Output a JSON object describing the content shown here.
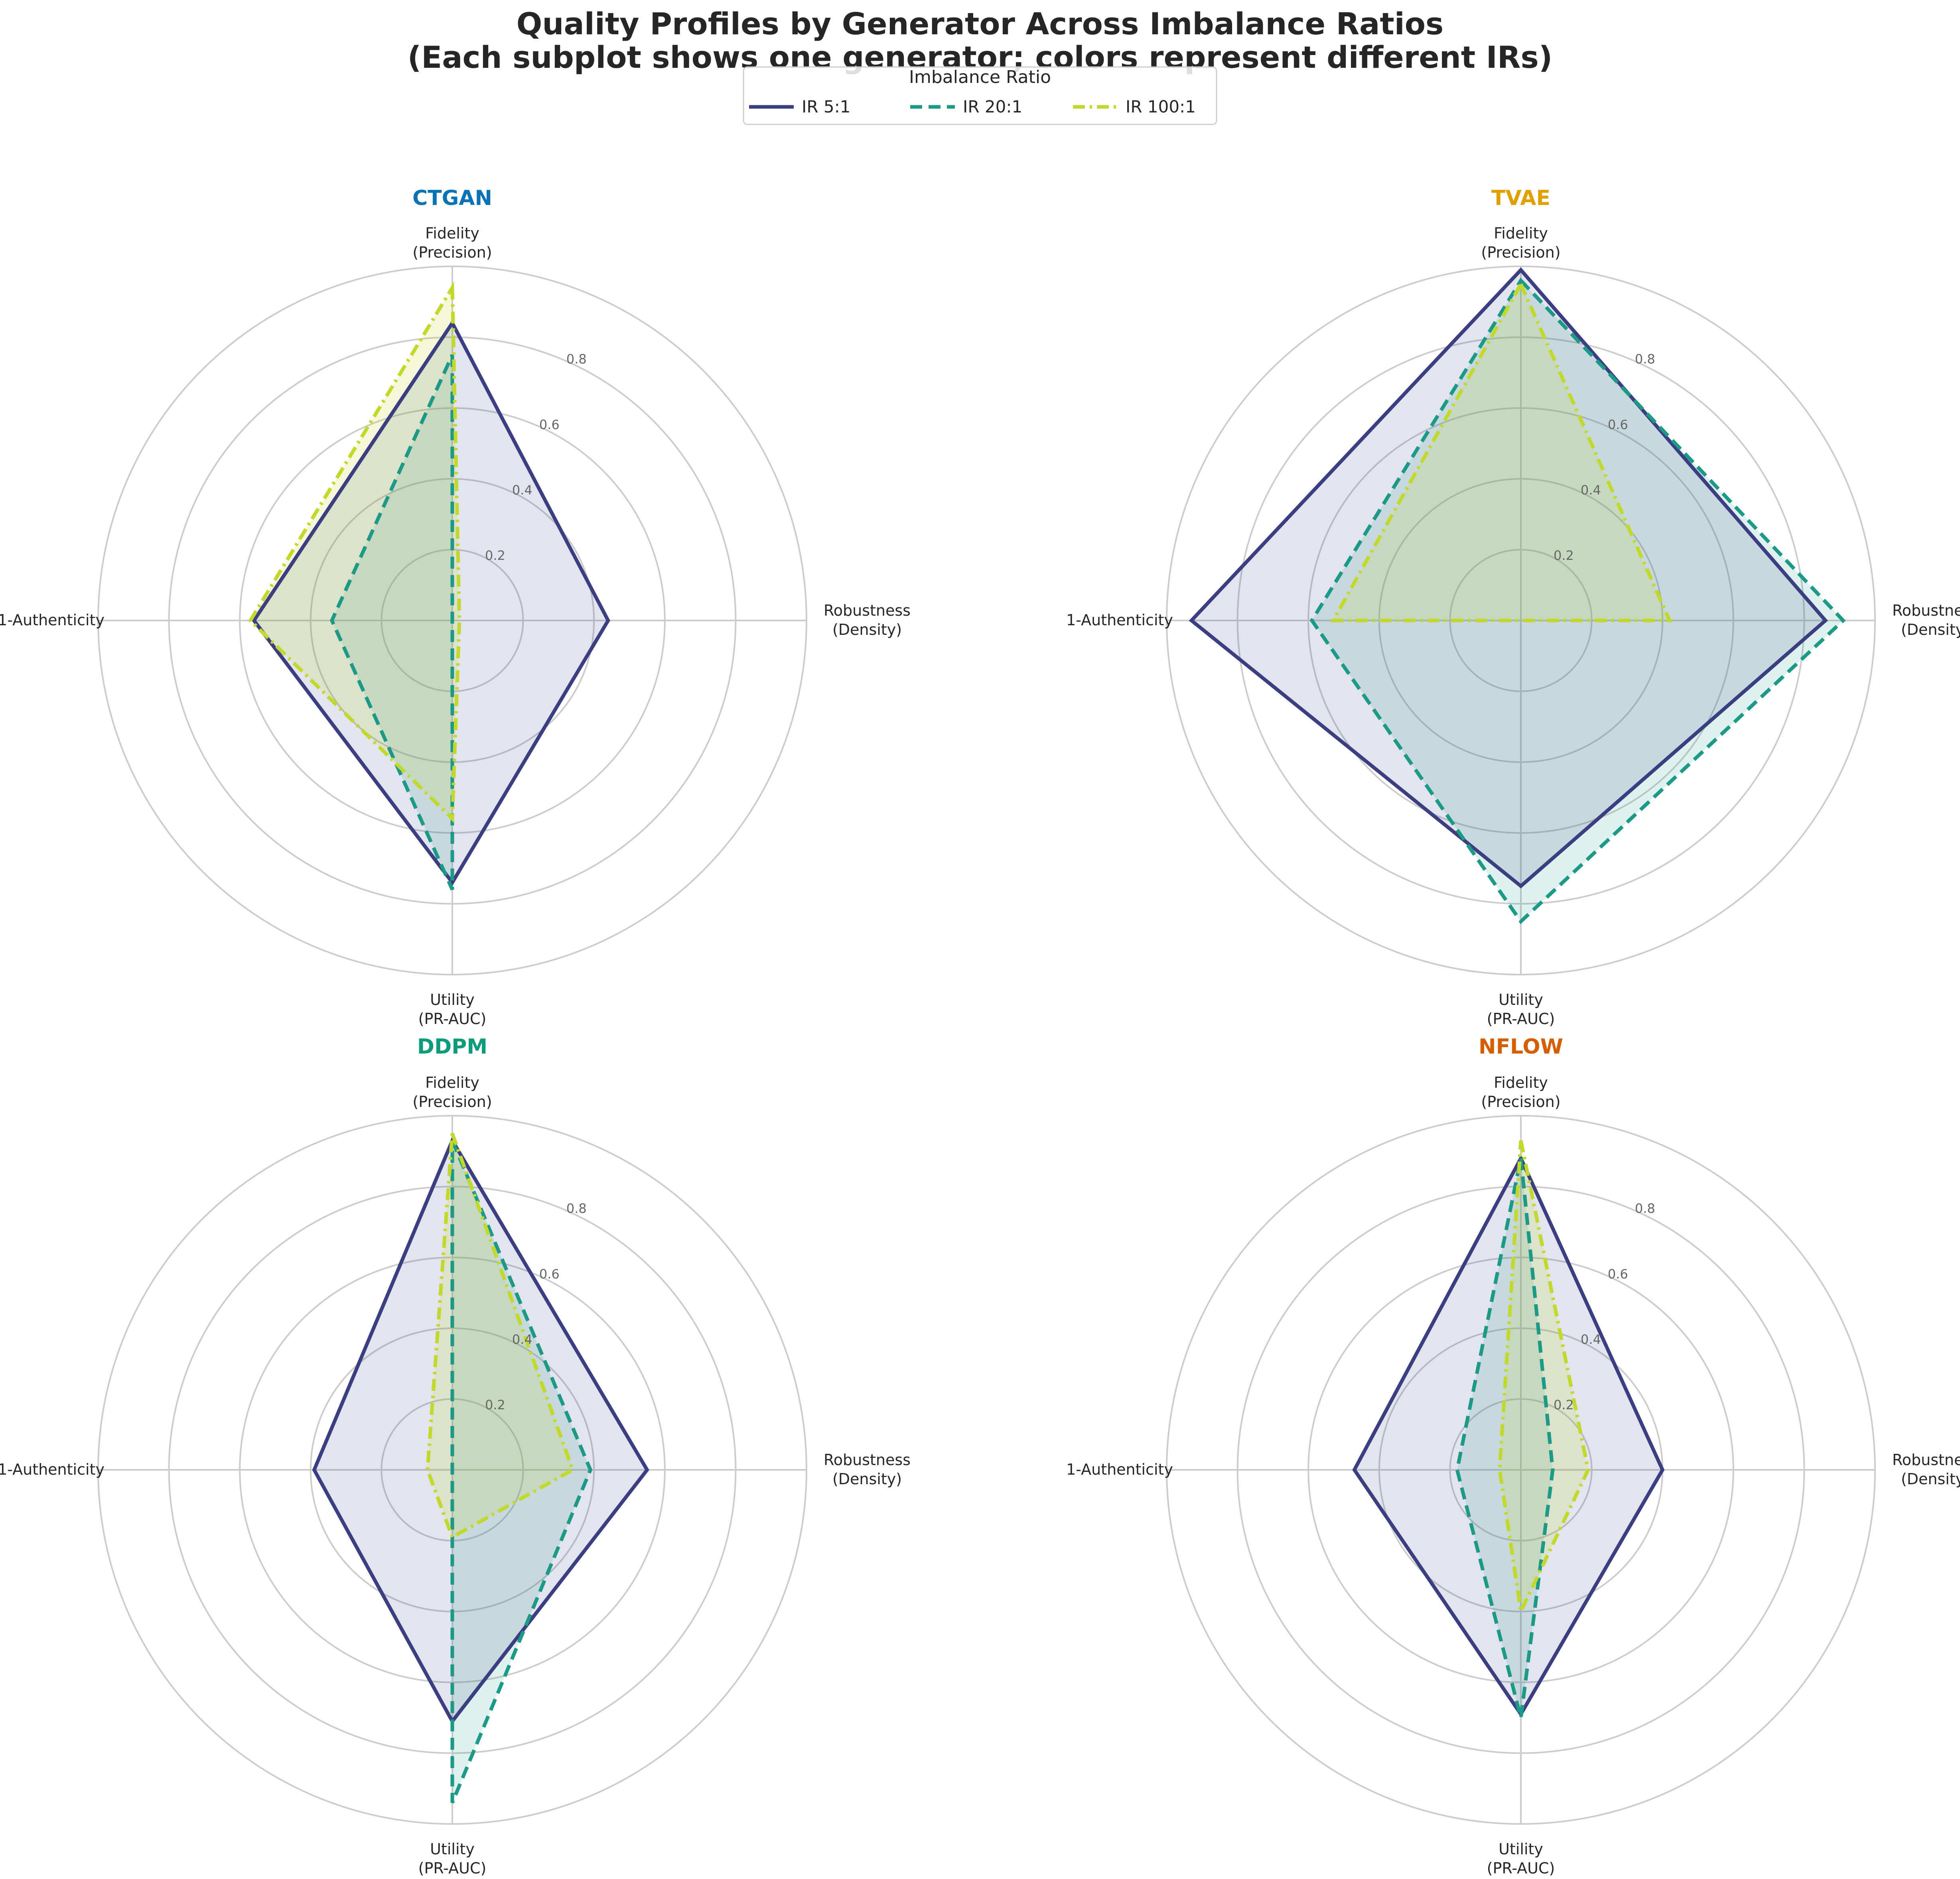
{
  "chart_data": {
    "type": "radar",
    "title_line1": "Quality Profiles by Generator Across Imbalance Ratios",
    "title_line2": "(Each subplot shows one generator; colors represent different IRs)",
    "axes": [
      [
        "Fidelity",
        "(Precision)"
      ],
      [
        "Robustness",
        "(Density)"
      ],
      [
        "Utility",
        "(PR-AUC)"
      ],
      [
        "1-Authenticity"
      ]
    ],
    "rlim": [
      0,
      1.0
    ],
    "rticks": [
      0.2,
      0.4,
      0.6,
      0.8
    ],
    "rtick_labels": [
      "0.2",
      "0.4",
      "0.6",
      "0.8"
    ],
    "legend": {
      "title": "Imbalance Ratio",
      "placement": "top-center",
      "entries": [
        {
          "label": "IR 5:1",
          "color": "#3b3f82",
          "dash": "solid"
        },
        {
          "label": "IR 20:1",
          "color": "#1c9a87",
          "dash": "dashed"
        },
        {
          "label": "IR 100:1",
          "color": "#c2d92c",
          "dash": "dashdot"
        }
      ]
    },
    "generators": [
      {
        "name": "CTGAN",
        "color": "#0b72b5",
        "series": [
          {
            "name": "IR 5:1",
            "values": [
              0.84,
              0.44,
              0.74,
              0.56
            ]
          },
          {
            "name": "IR 20:1",
            "values": [
              0.75,
              0.0,
              0.76,
              0.34
            ]
          },
          {
            "name": "IR 100:1",
            "values": [
              0.94,
              0.02,
              0.56,
              0.57
            ]
          }
        ]
      },
      {
        "name": "TVAE",
        "color": "#e0a000",
        "series": [
          {
            "name": "IR 5:1",
            "values": [
              0.99,
              0.86,
              0.75,
              0.93
            ]
          },
          {
            "name": "IR 20:1",
            "values": [
              0.96,
              0.91,
              0.85,
              0.59
            ]
          },
          {
            "name": "IR 100:1",
            "values": [
              0.95,
              0.42,
              0.0,
              0.53
            ]
          }
        ]
      },
      {
        "name": "DDPM",
        "color": "#0d9c79",
        "series": [
          {
            "name": "IR 5:1",
            "values": [
              0.93,
              0.55,
              0.71,
              0.39
            ]
          },
          {
            "name": "IR 20:1",
            "values": [
              0.93,
              0.39,
              0.94,
              0.0
            ]
          },
          {
            "name": "IR 100:1",
            "values": [
              0.95,
              0.34,
              0.19,
              0.07
            ]
          }
        ]
      },
      {
        "name": "NFLOW",
        "color": "#d55e00",
        "series": [
          {
            "name": "IR 5:1",
            "values": [
              0.88,
              0.4,
              0.69,
              0.47
            ]
          },
          {
            "name": "IR 20:1",
            "values": [
              0.88,
              0.09,
              0.7,
              0.18
            ]
          },
          {
            "name": "IR 100:1",
            "values": [
              0.93,
              0.19,
              0.4,
              0.06
            ]
          }
        ]
      }
    ]
  }
}
